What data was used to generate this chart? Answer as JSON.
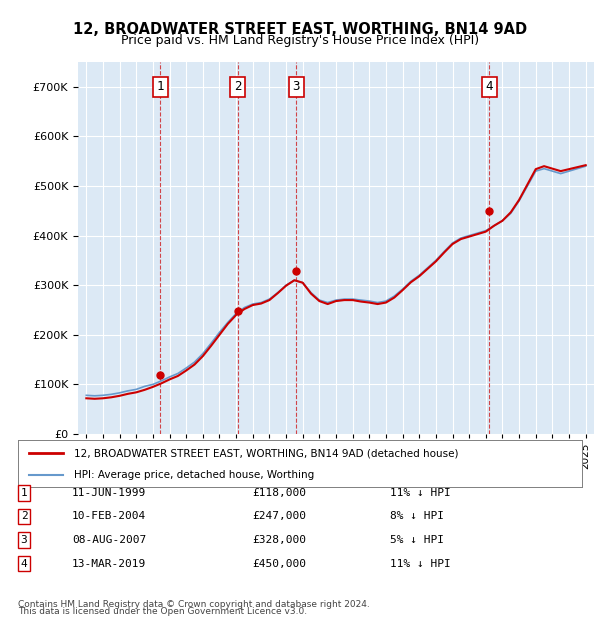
{
  "title": "12, BROADWATER STREET EAST, WORTHING, BN14 9AD",
  "subtitle": "Price paid vs. HM Land Registry's House Price Index (HPI)",
  "ylabel": "",
  "background_color": "#dce9f5",
  "plot_bg": "#dce9f5",
  "transactions": [
    {
      "num": 1,
      "date": "1999-06-11",
      "price": 118000,
      "label": "11-JUN-1999",
      "amount": "£118,000",
      "hpi": "11% ↓ HPI"
    },
    {
      "num": 2,
      "date": "2004-02-10",
      "price": 247000,
      "label": "10-FEB-2004",
      "amount": "£247,000",
      "hpi": "8% ↓ HPI"
    },
    {
      "num": 3,
      "date": "2007-08-08",
      "price": 328000,
      "label": "08-AUG-2007",
      "amount": "£328,000",
      "hpi": "5% ↓ HPI"
    },
    {
      "num": 4,
      "date": "2019-03-13",
      "price": 450000,
      "label": "13-MAR-2019",
      "amount": "£450,000",
      "hpi": "11% ↓ HPI"
    }
  ],
  "legend_line1": "12, BROADWATER STREET EAST, WORTHING, BN14 9AD (detached house)",
  "legend_line2": "HPI: Average price, detached house, Worthing",
  "footer1": "Contains HM Land Registry data © Crown copyright and database right 2024.",
  "footer2": "This data is licensed under the Open Government Licence v3.0.",
  "price_line_color": "#cc0000",
  "hpi_line_color": "#6699cc",
  "ylim_max": 750000,
  "ylim_min": 0
}
